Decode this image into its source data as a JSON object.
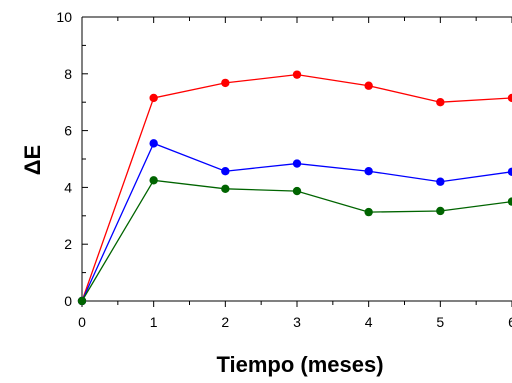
{
  "chart_data": {
    "type": "line",
    "title": "",
    "xlabel": "Tiempo (meses)",
    "ylabel": "ΔE",
    "xlim": [
      0,
      6
    ],
    "ylim": [
      0,
      10
    ],
    "x_ticks": [
      "0",
      "1",
      "2",
      "3",
      "4",
      "5",
      "6"
    ],
    "y_ticks": [
      "0",
      "2",
      "4",
      "6",
      "8",
      "10"
    ],
    "grid": false,
    "legend": "none",
    "x": [
      0,
      1,
      2,
      3,
      4,
      5,
      6
    ],
    "series": [
      {
        "color": "#ff0000",
        "values": [
          0,
          7.15,
          7.68,
          7.97,
          7.58,
          7.0,
          7.15
        ]
      },
      {
        "color": "#0000ff",
        "values": [
          0,
          5.55,
          4.57,
          4.84,
          4.57,
          4.2,
          4.55
        ]
      },
      {
        "color": "#006400",
        "values": [
          0,
          4.25,
          3.95,
          3.87,
          3.13,
          3.17,
          3.5
        ]
      }
    ]
  }
}
